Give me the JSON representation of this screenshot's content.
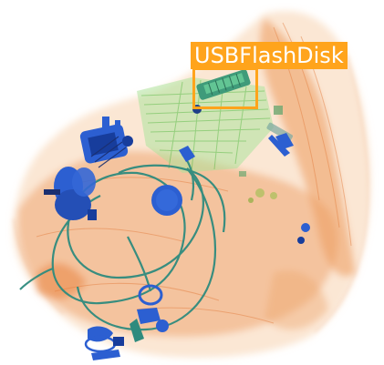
{
  "image": {
    "kind": "xray-baggage-scan",
    "background_color": "#ffffff"
  },
  "detection": {
    "label": "USBFlashDisk",
    "color": "#ffa41c"
  },
  "colors": {
    "organic": "#e98a4a",
    "organic_light": "#f5c8a0",
    "inorganic": "#8ed27a",
    "metal_blue": "#2c5fd1",
    "metal_dark": "#173d9c",
    "cable_teal": "#2e8b7e"
  }
}
